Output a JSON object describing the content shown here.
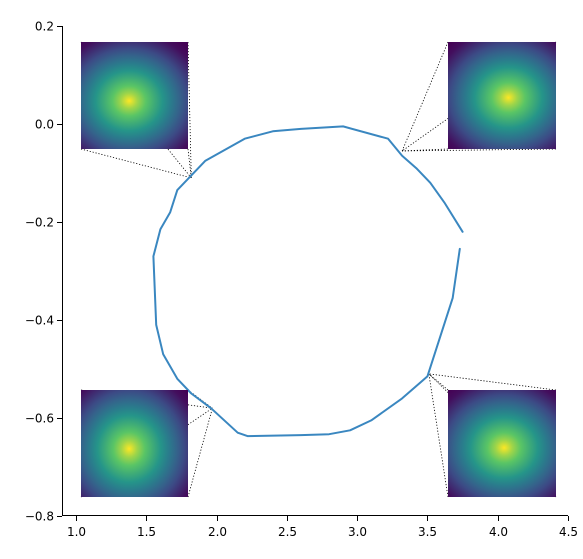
{
  "chart_data": {
    "type": "line",
    "title": "",
    "xlabel": "",
    "ylabel": "",
    "xlim": [
      0.9,
      4.5
    ],
    "ylim": [
      -0.8,
      0.2
    ],
    "grid": false,
    "x_ticks": [
      1.0,
      1.5,
      2.0,
      2.5,
      3.0,
      3.5,
      4.0,
      4.5
    ],
    "x_tick_labels": [
      "1.0",
      "1.5",
      "2.0",
      "2.5",
      "3.0",
      "3.5",
      "4.0",
      "4.5"
    ],
    "y_ticks": [
      0.2,
      0.0,
      -0.2,
      -0.4,
      -0.6,
      -0.8
    ],
    "y_tick_labels": [
      "0.2",
      "0.0",
      "−0.2",
      "−0.4",
      "−0.6",
      "−0.8"
    ],
    "series": [
      {
        "color": "#3a87c0",
        "x": [
          3.75,
          3.62,
          3.52,
          3.42,
          3.32,
          3.22,
          2.9,
          2.6,
          2.4,
          2.2,
          1.92,
          1.82,
          1.72,
          1.67,
          1.6,
          1.55,
          1.57,
          1.62,
          1.72,
          1.82,
          1.96,
          2.15,
          2.22,
          2.6,
          2.8,
          2.95,
          3.1,
          3.32,
          3.5,
          3.68,
          3.73
        ],
        "y": [
          -0.22,
          -0.16,
          -0.12,
          -0.09,
          -0.065,
          -0.03,
          -0.005,
          -0.01,
          -0.015,
          -0.03,
          -0.075,
          -0.105,
          -0.135,
          -0.18,
          -0.215,
          -0.27,
          -0.41,
          -0.47,
          -0.52,
          -0.55,
          -0.58,
          -0.63,
          -0.637,
          -0.635,
          -0.633,
          -0.625,
          -0.605,
          -0.56,
          -0.515,
          -0.355,
          -0.255
        ]
      }
    ],
    "insets": [
      {
        "name": "top-left",
        "anchor": [
          1.82,
          -0.11
        ],
        "peak": [
          0.45,
          0.55
        ],
        "elong": [
          1.0,
          0.9
        ]
      },
      {
        "name": "top-right",
        "anchor": [
          3.32,
          -0.055
        ],
        "peak": [
          0.56,
          0.52
        ],
        "elong": [
          1.0,
          0.9
        ]
      },
      {
        "name": "bottom-left",
        "anchor": [
          1.97,
          -0.58
        ],
        "peak": [
          0.45,
          0.55
        ],
        "elong": [
          0.95,
          1.0
        ]
      },
      {
        "name": "bottom-right",
        "anchor": [
          3.51,
          -0.51
        ],
        "peak": [
          0.52,
          0.54
        ],
        "elong": [
          1.0,
          0.9
        ]
      }
    ],
    "colormap": [
      "#440154",
      "#3b528b",
      "#21918c",
      "#5ec962",
      "#fde725"
    ]
  }
}
